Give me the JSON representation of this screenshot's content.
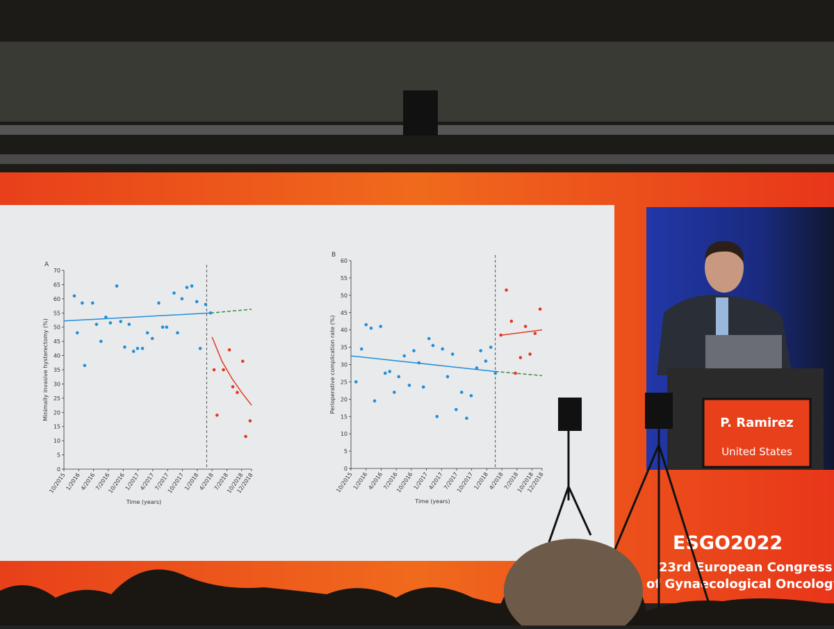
{
  "chart_data": [
    {
      "type": "scatter",
      "panel": "A",
      "ylabel": "Minimally invasive hysterectomy (%)",
      "xlabel": "Time (years)",
      "xlim": [
        0,
        38
      ],
      "ylim": [
        0,
        70
      ],
      "xticks": [
        {
          "value": 0,
          "label": "10/2015"
        },
        {
          "value": 3,
          "label": "1/2016"
        },
        {
          "value": 6,
          "label": "4/2016"
        },
        {
          "value": 9,
          "label": "7/2016"
        },
        {
          "value": 12,
          "label": "10/2016"
        },
        {
          "value": 15,
          "label": "1/2017"
        },
        {
          "value": 18,
          "label": "4/2017"
        },
        {
          "value": 21,
          "label": "7/2017"
        },
        {
          "value": 24,
          "label": "10/2017"
        },
        {
          "value": 27,
          "label": "1/2018"
        },
        {
          "value": 30,
          "label": "4/2018"
        },
        {
          "value": 33,
          "label": "7/2018"
        },
        {
          "value": 36,
          "label": "10/2018"
        },
        {
          "value": 38,
          "label": "12/2018"
        }
      ],
      "yticks": [
        0,
        5,
        10,
        15,
        20,
        25,
        30,
        35,
        40,
        45,
        50,
        55,
        60,
        65,
        70
      ],
      "intervention_x": 28.9,
      "series": [
        {
          "color": "#1f8fd8",
          "x": [
            2.1,
            2.7,
            3.7,
            4.2,
            5.8,
            6.6,
            7.5,
            8.5,
            9.4,
            10.7,
            11.5,
            12.3,
            13.2,
            14.1,
            14.9,
            15.9,
            16.9,
            17.9,
            19.2,
            20,
            20.8,
            22.3,
            23,
            23.9,
            24.9,
            25.9,
            26.9,
            27.6,
            28.7,
            29.7
          ],
          "values": [
            61,
            48,
            58.5,
            36.5,
            58.5,
            51,
            45,
            53.5,
            51.5,
            64.5,
            52,
            43,
            51,
            41.5,
            42.5,
            42.5,
            48,
            46,
            58.5,
            50,
            50,
            62,
            48,
            60,
            64,
            64.5,
            59,
            42.5,
            58,
            55
          ]
        },
        {
          "color": "#e03a22",
          "x": [
            30.4,
            31,
            32.3,
            33.5,
            34.2,
            35.1,
            36.2,
            36.8,
            37.7
          ],
          "values": [
            35,
            19,
            35,
            42,
            29,
            27,
            38,
            11.5,
            17
          ]
        }
      ],
      "trends": [
        {
          "color": "#1f8fd8",
          "dashed": false,
          "x": [
            0,
            29.7
          ],
          "values": [
            52.2,
            55
          ]
        },
        {
          "color": "#3a8a3a",
          "dashed": true,
          "x": [
            29.7,
            38
          ],
          "values": [
            55,
            56.3
          ]
        },
        {
          "color": "#e03a22",
          "dashed": false,
          "x": [
            30,
            32,
            34,
            36,
            38
          ],
          "values": [
            46.5,
            38,
            32,
            27,
            22.5
          ]
        }
      ]
    },
    {
      "type": "scatter",
      "panel": "B",
      "ylabel": "Perioperative complication rate (%)",
      "xlabel": "Time (years)",
      "xlim": [
        0,
        38
      ],
      "ylim": [
        0,
        60
      ],
      "xticks": [
        {
          "value": 0,
          "label": "10/2015"
        },
        {
          "value": 3,
          "label": "1/2016"
        },
        {
          "value": 6,
          "label": "4/2016"
        },
        {
          "value": 9,
          "label": "7/2016"
        },
        {
          "value": 12,
          "label": "10/2016"
        },
        {
          "value": 15,
          "label": "1/2017"
        },
        {
          "value": 18,
          "label": "4/2017"
        },
        {
          "value": 21,
          "label": "7/2017"
        },
        {
          "value": 24,
          "label": "10/2017"
        },
        {
          "value": 27,
          "label": "1/2018"
        },
        {
          "value": 30,
          "label": "4/2018"
        },
        {
          "value": 33,
          "label": "7/2018"
        },
        {
          "value": 36,
          "label": "10/2018"
        },
        {
          "value": 38,
          "label": "12/2018"
        }
      ],
      "yticks": [
        0,
        5,
        10,
        15,
        20,
        25,
        30,
        35,
        40,
        45,
        50,
        55,
        60
      ],
      "intervention_x": 28.7,
      "series": [
        {
          "color": "#1f8fd8",
          "x": [
            1,
            2.1,
            3,
            4,
            4.7,
            5.9,
            6.8,
            7.7,
            8.6,
            9.5,
            10.6,
            11.6,
            12.5,
            13.5,
            14.4,
            15.5,
            16.3,
            17.1,
            18.2,
            19.2,
            20.2,
            20.9,
            22,
            23,
            23.9,
            25,
            25.8,
            26.8,
            27.8,
            28.7
          ],
          "values": [
            25,
            34.5,
            41.5,
            40.5,
            19.5,
            41,
            27.5,
            28,
            22,
            26.5,
            32.5,
            24,
            34,
            30.5,
            23.5,
            37.5,
            35.5,
            15,
            34.5,
            26.5,
            33,
            17,
            22,
            14.5,
            21,
            29,
            34,
            31,
            35,
            27.5
          ]
        },
        {
          "color": "#e03a22",
          "x": [
            29.8,
            30.9,
            31.9,
            32.7,
            33.7,
            34.7,
            35.6,
            36.6,
            37.6
          ],
          "values": [
            38.5,
            51.5,
            42.5,
            27.5,
            32,
            41,
            33,
            39,
            46
          ]
        }
      ],
      "trends": [
        {
          "color": "#1f8fd8",
          "dashed": false,
          "x": [
            0,
            28.7
          ],
          "values": [
            32.5,
            28
          ]
        },
        {
          "color": "#3a8a3a",
          "dashed": true,
          "x": [
            28.7,
            38
          ],
          "values": [
            28,
            26.8
          ]
        },
        {
          "color": "#e03a22",
          "dashed": false,
          "x": [
            30,
            38
          ],
          "values": [
            38.5,
            40
          ]
        }
      ]
    }
  ],
  "stage": {
    "name": "P. Ramirez",
    "country": "United States",
    "logo": "ESGO2022",
    "congress": [
      "23rd European Congress",
      "of Gynaecological Oncology"
    ]
  }
}
